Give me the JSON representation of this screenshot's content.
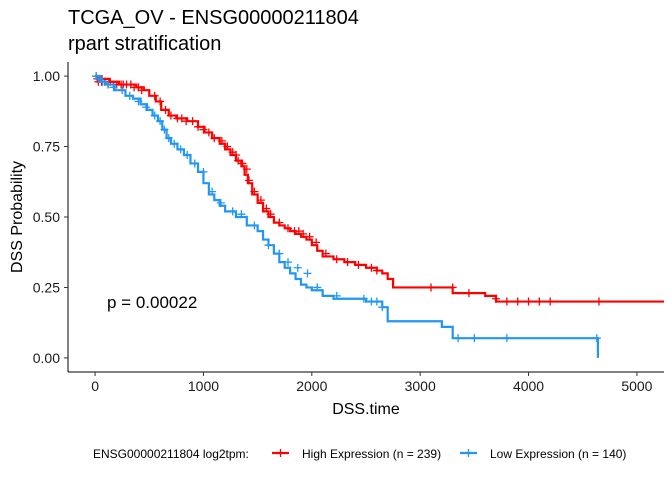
{
  "chart_data": {
    "type": "line",
    "title": "TCGA_OV - ENSG00000211804",
    "subtitle": "rpart stratification",
    "xlabel": "DSS.time",
    "ylabel": "DSS Probability",
    "xlim": [
      -250,
      5250
    ],
    "ylim": [
      -0.05,
      1.05
    ],
    "x_ticks": [
      0,
      1000,
      2000,
      3000,
      4000,
      5000
    ],
    "x_tick_labels": [
      "0",
      "1000",
      "2000",
      "3000",
      "4000",
      "5000"
    ],
    "y_ticks": [
      0,
      0.25,
      0.5,
      0.75,
      1.0
    ],
    "y_tick_labels": [
      "0.00",
      "0.25",
      "0.50",
      "0.75",
      "1.00"
    ],
    "grid": false,
    "annotation": "p = 0.00022",
    "legend": {
      "title": "ENSG00000211804 log2tpm:",
      "position": "bottom"
    },
    "series": [
      {
        "name": "High Expression (n = 239)",
        "color": "#FF0000",
        "step_x": [
          0,
          60,
          130,
          220,
          300,
          380,
          450,
          500,
          560,
          610,
          680,
          750,
          850,
          950,
          1010,
          1080,
          1150,
          1200,
          1250,
          1300,
          1350,
          1380,
          1410,
          1450,
          1500,
          1550,
          1600,
          1650,
          1700,
          1750,
          1800,
          1850,
          1900,
          1950,
          2000,
          2050,
          2100,
          2200,
          2300,
          2400,
          2500,
          2600,
          2650,
          2700,
          2750,
          2800,
          2900,
          3100,
          3300,
          3400,
          3600,
          3700,
          4000,
          4500,
          5250
        ],
        "step_y": [
          1.0,
          0.99,
          0.98,
          0.97,
          0.97,
          0.96,
          0.95,
          0.93,
          0.91,
          0.88,
          0.86,
          0.85,
          0.84,
          0.82,
          0.8,
          0.78,
          0.76,
          0.74,
          0.72,
          0.7,
          0.68,
          0.65,
          0.62,
          0.58,
          0.55,
          0.52,
          0.5,
          0.48,
          0.47,
          0.46,
          0.45,
          0.44,
          0.43,
          0.42,
          0.4,
          0.38,
          0.36,
          0.35,
          0.34,
          0.33,
          0.32,
          0.31,
          0.3,
          0.28,
          0.25,
          0.25,
          0.25,
          0.25,
          0.23,
          0.23,
          0.22,
          0.2,
          0.2,
          0.2,
          0.2
        ],
        "censor_x": [
          10,
          20,
          30,
          40,
          60,
          90,
          120,
          140,
          170,
          200,
          240,
          260,
          290,
          330,
          360,
          400,
          430,
          550,
          600,
          650,
          700,
          760,
          800,
          840,
          900,
          950,
          1000,
          1050,
          1100,
          1170,
          1220,
          1270,
          1300,
          1320,
          1360,
          1400,
          1420,
          1470,
          1530,
          1580,
          1620,
          1700,
          1780,
          1840,
          1880,
          1920,
          1980,
          2040,
          2130,
          2230,
          2330,
          2430,
          2550,
          2600,
          3100,
          3300,
          3450,
          3700,
          3800,
          3900,
          4000,
          4100,
          4200,
          4650
        ],
        "censor_y": [
          1.0,
          0.99,
          0.98,
          0.99,
          0.98,
          0.98,
          0.97,
          0.98,
          0.97,
          0.97,
          0.97,
          0.97,
          0.97,
          0.97,
          0.96,
          0.96,
          0.95,
          0.93,
          0.91,
          0.88,
          0.86,
          0.85,
          0.85,
          0.84,
          0.84,
          0.82,
          0.81,
          0.8,
          0.78,
          0.77,
          0.75,
          0.73,
          0.72,
          0.7,
          0.69,
          0.67,
          0.63,
          0.59,
          0.56,
          0.53,
          0.51,
          0.48,
          0.46,
          0.45,
          0.45,
          0.44,
          0.43,
          0.41,
          0.37,
          0.35,
          0.34,
          0.33,
          0.32,
          0.31,
          0.25,
          0.25,
          0.23,
          0.21,
          0.2,
          0.2,
          0.2,
          0.2,
          0.2,
          0.2
        ]
      },
      {
        "name": "Low Expression (n = 140)",
        "color": "#2196F3",
        "step_x": [
          0,
          50,
          100,
          180,
          280,
          350,
          420,
          480,
          530,
          580,
          620,
          660,
          700,
          760,
          820,
          880,
          950,
          1000,
          1050,
          1100,
          1150,
          1200,
          1300,
          1400,
          1500,
          1550,
          1600,
          1650,
          1700,
          1750,
          1800,
          1850,
          1900,
          1950,
          2000,
          2100,
          2200,
          2400,
          2500,
          2650,
          2700,
          2800,
          3000,
          3100,
          3200,
          3300,
          3400,
          3800,
          4000,
          4640
        ],
        "step_y": [
          1.0,
          0.98,
          0.97,
          0.95,
          0.93,
          0.92,
          0.9,
          0.88,
          0.86,
          0.84,
          0.81,
          0.78,
          0.76,
          0.74,
          0.72,
          0.69,
          0.66,
          0.62,
          0.58,
          0.56,
          0.54,
          0.52,
          0.5,
          0.47,
          0.45,
          0.42,
          0.4,
          0.37,
          0.34,
          0.32,
          0.3,
          0.28,
          0.26,
          0.25,
          0.24,
          0.22,
          0.21,
          0.21,
          0.2,
          0.18,
          0.13,
          0.13,
          0.13,
          0.13,
          0.11,
          0.07,
          0.07,
          0.07,
          0.07,
          0.0
        ],
        "censor_x": [
          10,
          30,
          70,
          120,
          170,
          250,
          320,
          400,
          470,
          550,
          600,
          640,
          680,
          730,
          790,
          850,
          920,
          1000,
          1080,
          1160,
          1270,
          1350,
          1470,
          1600,
          1700,
          1780,
          1870,
          1960,
          2050,
          2230,
          2480,
          2550,
          2600,
          2650,
          3350,
          3500,
          3800,
          4630
        ],
        "censor_y": [
          1.0,
          0.99,
          0.98,
          0.97,
          0.96,
          0.95,
          0.93,
          0.91,
          0.89,
          0.86,
          0.84,
          0.81,
          0.78,
          0.76,
          0.74,
          0.72,
          0.69,
          0.66,
          0.59,
          0.55,
          0.52,
          0.51,
          0.47,
          0.4,
          0.37,
          0.34,
          0.32,
          0.3,
          0.25,
          0.22,
          0.21,
          0.2,
          0.2,
          0.18,
          0.07,
          0.07,
          0.07,
          0.07
        ]
      }
    ]
  }
}
